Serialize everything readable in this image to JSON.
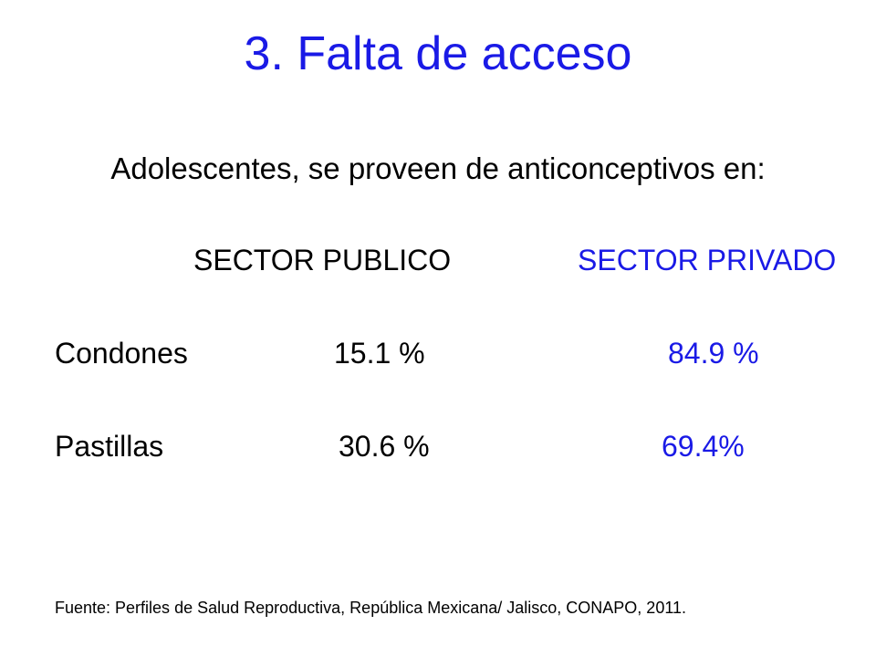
{
  "title": "3. Falta de acceso",
  "subtitle": "Adolescentes, se proveen de anticonceptivos en:",
  "headers": {
    "public": "SECTOR PUBLICO",
    "private": "SECTOR PRIVADO"
  },
  "rows": [
    {
      "label": "Condones",
      "public": "15.1  %",
      "private": "84.9 %"
    },
    {
      "label": "Pastillas",
      "public": "30.6 %",
      "private": "69.4%"
    }
  ],
  "source": "Fuente: Perfiles de Salud Reproductiva, República Mexicana/ Jalisco, CONAPO, 2011.",
  "colors": {
    "accent": "#1a1ae6",
    "text": "#000000",
    "background": "#ffffff"
  }
}
